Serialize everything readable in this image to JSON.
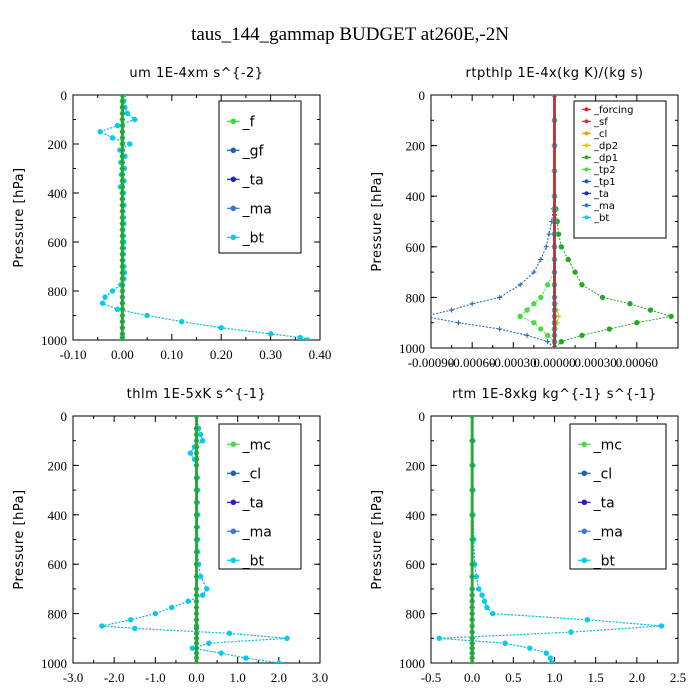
{
  "suptitle": "taus_144_gammap  BUDGET at260E,-2N",
  "chart_data": [
    {
      "type": "line",
      "title": "um   1E-4xm s^{-2}",
      "ylabel": "Pressure [hPa]",
      "xlim": [
        -0.1,
        0.4
      ],
      "ylim": [
        1000,
        0
      ],
      "xticks": [
        "-0.10",
        "0.00",
        "0.10",
        "0.20",
        "0.30",
        "0.40"
      ],
      "yticks": [
        "0",
        "200",
        "400",
        "600",
        "800",
        "1000"
      ],
      "legend": "top-right",
      "y": [
        0,
        25,
        50,
        75,
        100,
        125,
        150,
        175,
        200,
        225,
        250,
        275,
        300,
        325,
        350,
        375,
        400,
        425,
        450,
        475,
        500,
        525,
        550,
        575,
        600,
        625,
        650,
        675,
        700,
        725,
        750,
        775,
        800,
        825,
        850,
        875,
        900,
        925,
        950,
        975,
        990,
        1000
      ],
      "series": [
        {
          "name": "_f",
          "color": "#33dd33",
          "values": [
            0,
            0,
            0,
            0,
            0,
            0,
            0,
            0,
            0,
            0,
            0,
            0,
            0,
            0,
            0,
            0,
            0,
            0,
            0,
            0,
            0,
            0,
            0,
            0,
            0,
            0,
            0,
            0,
            0,
            0,
            0,
            0,
            0,
            0,
            0,
            0,
            0,
            0,
            0,
            0,
            0,
            0
          ]
        },
        {
          "name": "_gf",
          "color": "#1a5fb4",
          "values": [
            0.003,
            0.003,
            0.005,
            0.01,
            0.025,
            -0.01,
            -0.045,
            -0.02,
            0.015,
            -0.005,
            0.005,
            -0.003,
            0.004,
            -0.002,
            0.003,
            -0.004,
            0.002,
            0.0,
            0.003,
            0.001,
            0.002,
            0.003,
            0.001,
            0.002,
            0.003,
            0.002,
            0.002,
            0.001,
            0.003,
            0.004,
            0.003,
            -0.003,
            -0.02,
            -0.035,
            -0.04,
            -0.01,
            0.05,
            0.12,
            0.2,
            0.3,
            0.36,
            0.37
          ]
        },
        {
          "name": "_ta",
          "color": "#2222cc",
          "values": [
            0,
            0,
            0,
            0,
            0,
            0,
            0,
            0,
            0,
            0,
            0,
            0,
            0,
            0,
            0,
            0,
            0,
            0,
            0,
            0,
            0,
            0,
            0,
            0,
            0,
            0,
            0,
            0,
            0,
            0,
            0,
            0,
            0,
            0,
            0,
            0,
            0,
            0,
            0,
            0,
            0,
            0
          ]
        },
        {
          "name": "_ma",
          "color": "#3377dd",
          "values": [
            0,
            0,
            0,
            0,
            0,
            0,
            0,
            0,
            0,
            0,
            0,
            0,
            0,
            0,
            0,
            0,
            0,
            0,
            0,
            0,
            0,
            0,
            0,
            0,
            0,
            0,
            0,
            0,
            0,
            0,
            0,
            0,
            0,
            0,
            0,
            0,
            0,
            0,
            0,
            0,
            0,
            0
          ]
        },
        {
          "name": "_bt",
          "color": "#00ccee",
          "values": [
            0.003,
            0.003,
            0.005,
            0.01,
            0.025,
            -0.01,
            -0.045,
            -0.02,
            0.015,
            -0.005,
            0.005,
            -0.003,
            0.004,
            -0.002,
            0.003,
            -0.004,
            0.002,
            0.0,
            0.003,
            0.001,
            0.002,
            0.003,
            0.001,
            0.002,
            0.003,
            0.002,
            0.002,
            0.001,
            0.003,
            0.004,
            0.003,
            -0.003,
            -0.02,
            -0.035,
            -0.04,
            -0.01,
            0.05,
            0.12,
            0.2,
            0.3,
            0.36,
            0.375
          ]
        }
      ]
    },
    {
      "type": "line",
      "title": "rtpthlp   1E-4x(kg K)/(kg s)",
      "ylabel": "Pressure [hPa]",
      "xlim": [
        -0.0009,
        0.0009
      ],
      "ylim": [
        1000,
        0
      ],
      "xticks": [
        "-0.00090",
        "-0.00060",
        "-0.00030",
        "0.00000",
        "0.00030",
        "0.00060"
      ],
      "yticks": [
        "0",
        "200",
        "400",
        "600",
        "800",
        "1000"
      ],
      "legend": "top-right",
      "y": [
        0,
        100,
        200,
        300,
        400,
        450,
        500,
        550,
        600,
        650,
        700,
        750,
        800,
        825,
        850,
        875,
        900,
        925,
        950,
        975,
        1000
      ],
      "series": [
        {
          "name": "_forcing",
          "color": "#dd2222",
          "values": [
            0,
            0,
            0,
            0,
            0,
            0,
            0,
            0,
            0,
            0,
            0,
            0,
            0,
            0,
            0,
            0,
            0,
            0,
            0,
            0,
            0
          ]
        },
        {
          "name": "_sf",
          "color": "#cc3333",
          "values": [
            0,
            0,
            0,
            0,
            0,
            0,
            0,
            0,
            0,
            0,
            0,
            0,
            0,
            0,
            0,
            0,
            0,
            0,
            0,
            0,
            0
          ]
        },
        {
          "name": "_cl",
          "color": "#ff9900",
          "values": [
            0,
            0,
            0,
            0,
            0,
            0,
            0,
            0,
            0,
            0,
            0,
            0,
            0,
            1e-05,
            2e-05,
            3e-05,
            2e-05,
            1e-05,
            0,
            0,
            0
          ]
        },
        {
          "name": "_dp2",
          "color": "#ddcc00",
          "values": [
            0,
            0,
            0,
            0,
            0,
            0,
            0,
            0,
            0,
            0,
            0,
            0,
            0,
            1e-05,
            2e-05,
            3e-05,
            2e-05,
            1e-05,
            0,
            0,
            0
          ]
        },
        {
          "name": "_dp1",
          "color": "#22aa22",
          "values": [
            0,
            0,
            0,
            0,
            0,
            1e-05,
            2e-05,
            3e-05,
            5e-05,
            0.0001,
            0.00015,
            0.0002,
            0.00035,
            0.00055,
            0.0007,
            0.00085,
            0.0006,
            0.0004,
            0.0002,
            5e-05,
            0
          ]
        },
        {
          "name": "_tp2",
          "color": "#44dd44",
          "values": [
            0,
            0,
            0,
            0,
            0,
            0,
            0,
            0,
            0,
            0,
            0,
            -5e-05,
            -0.0001,
            -0.00015,
            -0.0002,
            -0.00025,
            -0.00015,
            -0.0001,
            -5e-05,
            0,
            0
          ]
        },
        {
          "name": "_tp1",
          "color": "#1a5fb4",
          "values": [
            0,
            0,
            0,
            0,
            0,
            -1e-05,
            -2e-05,
            -4e-05,
            -6e-05,
            -0.0001,
            -0.00015,
            -0.00025,
            -0.0004,
            -0.0006,
            -0.00075,
            -0.00095,
            -0.0007,
            -0.0004,
            -0.0002,
            -5e-05,
            0
          ]
        },
        {
          "name": "_ta",
          "color": "#2222cc",
          "values": [
            0,
            0,
            0,
            0,
            0,
            0,
            0,
            0,
            0,
            0,
            0,
            0,
            0,
            0,
            0,
            0,
            0,
            0,
            0,
            0,
            0
          ]
        },
        {
          "name": "_ma",
          "color": "#3377dd",
          "values": [
            0,
            0,
            0,
            0,
            0,
            0,
            0,
            0,
            0,
            0,
            0,
            0,
            0,
            0,
            0,
            0,
            0,
            0,
            0,
            0,
            0
          ]
        },
        {
          "name": "_bt",
          "color": "#00ccee",
          "values": [
            0,
            0,
            0,
            0,
            0,
            0,
            0,
            0,
            0,
            0,
            0,
            0,
            0,
            0,
            0,
            0,
            0,
            0,
            0,
            0,
            0
          ]
        }
      ]
    },
    {
      "type": "line",
      "title": "thlm   1E-5xK  s^{-1}",
      "ylabel": "Pressure [hPa]",
      "xlim": [
        -3.0,
        3.0
      ],
      "ylim": [
        1000,
        0
      ],
      "xticks": [
        "-3.0",
        "-2.0",
        "-1.0",
        "0.0",
        "1.0",
        "2.0",
        "3.0"
      ],
      "yticks": [
        "0",
        "200",
        "400",
        "600",
        "800",
        "1000"
      ],
      "legend": "top-right",
      "y": [
        0,
        50,
        75,
        100,
        125,
        150,
        175,
        200,
        250,
        300,
        350,
        400,
        450,
        500,
        550,
        600,
        650,
        700,
        725,
        750,
        775,
        800,
        825,
        850,
        860,
        880,
        900,
        920,
        940,
        960,
        980,
        1000
      ],
      "series": [
        {
          "name": "_mc",
          "color": "#44dd44",
          "values": [
            0,
            0,
            0,
            0,
            0,
            0,
            0,
            0,
            0,
            0,
            0,
            0,
            0,
            0,
            0,
            0,
            0,
            0,
            0,
            0,
            0,
            0,
            0,
            0,
            0,
            0,
            0,
            0,
            0,
            0,
            0,
            0
          ]
        },
        {
          "name": "_cl",
          "color": "#1a5fb4",
          "values": [
            0,
            0.05,
            0.1,
            0.15,
            -0.05,
            -0.15,
            -0.05,
            0.0,
            0.02,
            0.03,
            0.02,
            0.03,
            0.02,
            0.03,
            0.03,
            0.05,
            0.1,
            0.25,
            0.15,
            -0.2,
            -0.6,
            -1.0,
            -1.6,
            -2.3,
            -1.5,
            0.8,
            2.2,
            0.3,
            -0.1,
            0.6,
            1.2,
            2.0
          ]
        },
        {
          "name": "_ta",
          "color": "#2222cc",
          "values": [
            0,
            0,
            0,
            0,
            0,
            0,
            0,
            0,
            0,
            0,
            0,
            0,
            0,
            0,
            0,
            0,
            0,
            0,
            0,
            0,
            0,
            0,
            0,
            0,
            0,
            0,
            0,
            0,
            0,
            0,
            0,
            0
          ]
        },
        {
          "name": "_ma",
          "color": "#3377dd",
          "values": [
            0,
            0,
            0,
            0,
            0,
            0,
            0,
            0,
            0,
            0,
            0,
            0,
            0,
            0,
            0,
            0,
            0,
            0,
            0,
            0,
            0,
            0,
            0,
            0,
            0,
            0,
            0,
            0,
            0,
            0,
            0,
            0
          ]
        },
        {
          "name": "_bt",
          "color": "#00ccee",
          "values": [
            0,
            0.05,
            0.1,
            0.15,
            -0.05,
            -0.15,
            -0.05,
            0.0,
            0.02,
            0.03,
            0.02,
            0.03,
            0.02,
            0.03,
            0.03,
            0.05,
            0.1,
            0.25,
            0.15,
            -0.2,
            -0.6,
            -1.0,
            -1.6,
            -2.3,
            -1.5,
            0.8,
            2.2,
            0.3,
            -0.1,
            0.6,
            1.2,
            2.0
          ]
        }
      ]
    },
    {
      "type": "line",
      "title": "rtm   1E-8xkg kg^{-1} s^{-1}",
      "ylabel": "Pressure [hPa]",
      "xlim": [
        -0.5,
        2.5
      ],
      "ylim": [
        1000,
        0
      ],
      "xticks": [
        "-0.5",
        "0.0",
        "0.5",
        "1.0",
        "1.5",
        "2.0",
        "2.5"
      ],
      "yticks": [
        "0",
        "200",
        "400",
        "600",
        "800",
        "1000"
      ],
      "legend": "top-right",
      "y": [
        0,
        100,
        200,
        300,
        400,
        500,
        600,
        650,
        700,
        725,
        750,
        775,
        800,
        825,
        850,
        875,
        900,
        920,
        940,
        960,
        980,
        1000
      ],
      "series": [
        {
          "name": "_mc",
          "color": "#44dd44",
          "values": [
            0,
            0,
            0,
            0,
            0,
            0,
            0,
            0,
            0,
            0,
            0,
            0,
            0,
            0,
            0,
            0,
            0,
            0,
            0,
            0,
            0,
            0
          ]
        },
        {
          "name": "_cl",
          "color": "#1a5fb4",
          "values": [
            0,
            0.01,
            0.01,
            0.01,
            0.01,
            0.02,
            0.03,
            0.05,
            0.08,
            0.12,
            0.15,
            0.18,
            0.25,
            1.4,
            2.3,
            1.2,
            -0.4,
            0.4,
            0.7,
            0.9,
            0.95,
            0.95
          ]
        },
        {
          "name": "_ta",
          "color": "#2222cc",
          "values": [
            0,
            0,
            0,
            0,
            0,
            0,
            0,
            0,
            0,
            0,
            0,
            0,
            0,
            0,
            0,
            0,
            0,
            0,
            0,
            0,
            0,
            0
          ]
        },
        {
          "name": "_ma",
          "color": "#3377dd",
          "values": [
            0,
            0,
            0,
            0,
            0,
            0,
            0,
            0,
            0,
            0,
            0,
            0,
            0,
            0,
            0,
            0,
            0,
            0,
            0,
            0,
            0,
            0
          ]
        },
        {
          "name": "_bt",
          "color": "#00ccee",
          "values": [
            0,
            0.01,
            0.01,
            0.01,
            0.01,
            0.02,
            0.03,
            0.05,
            0.08,
            0.12,
            0.15,
            0.18,
            0.25,
            1.4,
            2.3,
            1.2,
            -0.4,
            0.4,
            0.7,
            0.9,
            0.95,
            0.98
          ]
        }
      ]
    }
  ]
}
